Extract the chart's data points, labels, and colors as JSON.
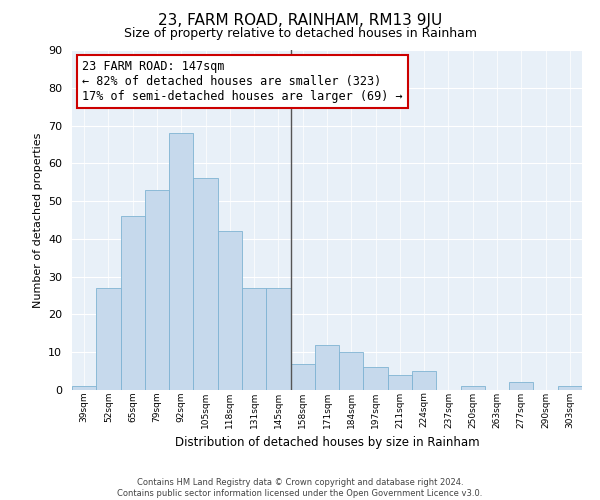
{
  "title": "23, FARM ROAD, RAINHAM, RM13 9JU",
  "subtitle": "Size of property relative to detached houses in Rainham",
  "xlabel": "Distribution of detached houses by size in Rainham",
  "ylabel": "Number of detached properties",
  "footer_line1": "Contains HM Land Registry data © Crown copyright and database right 2024.",
  "footer_line2": "Contains public sector information licensed under the Open Government Licence v3.0.",
  "categories": [
    "39sqm",
    "52sqm",
    "65sqm",
    "79sqm",
    "92sqm",
    "105sqm",
    "118sqm",
    "131sqm",
    "145sqm",
    "158sqm",
    "171sqm",
    "184sqm",
    "197sqm",
    "211sqm",
    "224sqm",
    "237sqm",
    "250sqm",
    "263sqm",
    "277sqm",
    "290sqm",
    "303sqm"
  ],
  "values": [
    1,
    27,
    46,
    53,
    68,
    56,
    42,
    27,
    27,
    7,
    12,
    10,
    6,
    4,
    5,
    0,
    1,
    0,
    2,
    0,
    1
  ],
  "bar_color": "#c6d9ec",
  "bar_edge_color": "#7fb3d3",
  "vline_color": "#555555",
  "ylim": [
    0,
    90
  ],
  "yticks": [
    0,
    10,
    20,
    30,
    40,
    50,
    60,
    70,
    80,
    90
  ],
  "annotation_title": "23 FARM ROAD: 147sqm",
  "annotation_line1": "← 82% of detached houses are smaller (323)",
  "annotation_line2": "17% of semi-detached houses are larger (69) →",
  "annotation_box_color": "#ffffff",
  "annotation_box_edge_color": "#cc0000",
  "bg_color": "#e8f0f8",
  "title_fontsize": 11,
  "subtitle_fontsize": 9,
  "annotation_fontsize": 8.5
}
